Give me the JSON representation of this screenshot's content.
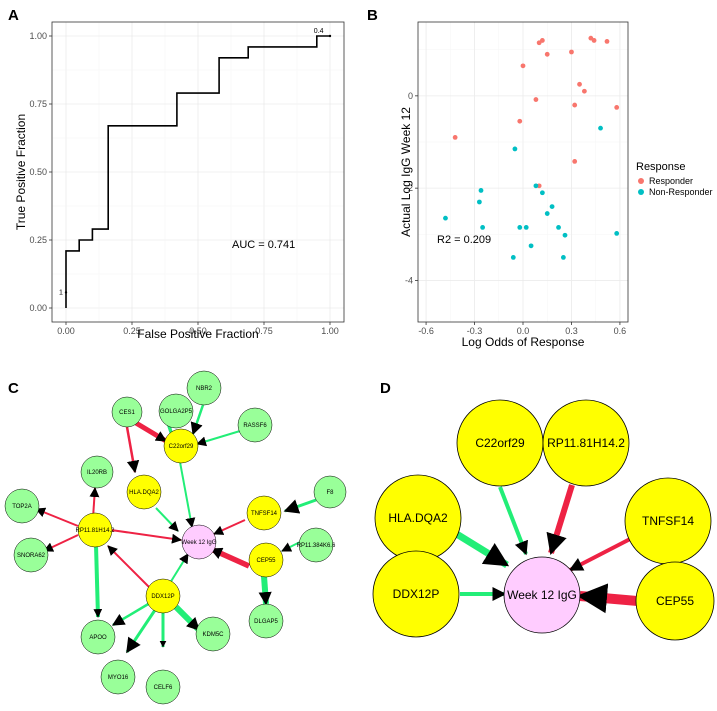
{
  "panel_labels": {
    "a": "A",
    "b": "B",
    "c": "C",
    "d": "D"
  },
  "colors": {
    "responder": "#f8766d",
    "non_responder": "#00bfc4",
    "pos_edge": "#22ee77",
    "neg_edge": "#ee2244",
    "hub_node": "#ffff00",
    "leaf_node": "#99ff99",
    "center_node": "#ffccff"
  },
  "chart_data": [
    {
      "id": "A",
      "type": "line",
      "title": "",
      "xlabel": "False Positive Fraction",
      "ylabel": "True Positive Fraction",
      "xlim": [
        0,
        1
      ],
      "ylim": [
        0,
        1
      ],
      "xticks": [
        "0.00",
        "0.25",
        "0.50",
        "0.75",
        "1.00"
      ],
      "yticks": [
        "0.00",
        "0.25",
        "0.50",
        "0.75",
        "1.00"
      ],
      "series": [
        {
          "name": "ROC",
          "x": [
            0,
            0,
            0.05,
            0.05,
            0.1,
            0.1,
            0.16,
            0.16,
            0.42,
            0.42,
            0.58,
            0.58,
            0.69,
            0.69,
            0.95,
            0.95,
            1.0
          ],
          "y": [
            0,
            0.21,
            0.21,
            0.25,
            0.25,
            0.29,
            0.29,
            0.67,
            0.67,
            0.79,
            0.79,
            0.92,
            0.92,
            0.96,
            0.96,
            1.0,
            1.0
          ]
        }
      ],
      "annotations": {
        "auc_text": "AUC = 0.741",
        "start_label": "1",
        "end_label": "0.4"
      }
    },
    {
      "id": "B",
      "type": "scatter",
      "title": "",
      "xlabel": "Log Odds of Response",
      "ylabel": "Actual Log IgG Week 12",
      "xlim": [
        -0.65,
        0.65
      ],
      "ylim": [
        -4.9,
        1.6
      ],
      "xticks": [
        -0.6,
        -0.3,
        0.0,
        0.3,
        0.6
      ],
      "yticks": [
        -4,
        -2,
        0
      ],
      "xtick_labels": [
        "-0.6",
        "-0.3",
        "0.0",
        "0.3",
        "0.6"
      ],
      "ytick_labels": [
        "-4",
        "-2",
        "0"
      ],
      "series": [
        {
          "name": "Responder",
          "points": [
            [
              0.1,
              1.15
            ],
            [
              0.12,
              1.2
            ],
            [
              0.42,
              1.25
            ],
            [
              0.44,
              1.2
            ],
            [
              0.52,
              1.18
            ],
            [
              0.3,
              0.95
            ],
            [
              0.15,
              0.9
            ],
            [
              0.0,
              0.65
            ],
            [
              0.35,
              0.25
            ],
            [
              0.38,
              0.1
            ],
            [
              0.32,
              -0.2
            ],
            [
              0.58,
              -0.25
            ],
            [
              0.08,
              -0.08
            ],
            [
              -0.02,
              -0.55
            ],
            [
              -0.42,
              -0.9
            ],
            [
              0.1,
              -1.95
            ],
            [
              0.32,
              -1.42
            ]
          ]
        },
        {
          "name": "Non-Responder",
          "points": [
            [
              0.48,
              -0.7
            ],
            [
              -0.05,
              -1.15
            ],
            [
              0.08,
              -1.95
            ],
            [
              0.12,
              -2.1
            ],
            [
              0.18,
              -2.4
            ],
            [
              0.15,
              -2.55
            ],
            [
              -0.26,
              -2.05
            ],
            [
              -0.27,
              -2.3
            ],
            [
              -0.48,
              -2.65
            ],
            [
              -0.25,
              -2.85
            ],
            [
              -0.02,
              -2.85
            ],
            [
              0.02,
              -2.85
            ],
            [
              0.22,
              -2.85
            ],
            [
              0.05,
              -3.25
            ],
            [
              0.26,
              -3.02
            ],
            [
              -0.06,
              -3.5
            ],
            [
              0.25,
              -3.5
            ],
            [
              0.58,
              -2.98
            ]
          ]
        }
      ],
      "annotations": {
        "r2_text": "R2 = 0.209"
      },
      "legend": {
        "title": "Response",
        "items": [
          "Responder",
          "Non-Responder"
        ]
      }
    }
  ],
  "network_c": {
    "center": "Week 12 IgG",
    "nodes": {
      "week12": "Week 12 IgG",
      "golga2p5": "GOLGA2P5",
      "nbr2": "NBR2",
      "ces1": "CES1",
      "c22orf29": "C22orf29",
      "rassf6": "RASSF6",
      "il20rb": "IL20RB",
      "hladqa2": "HLA.DQA2",
      "tnfsf14": "TNFSF14",
      "f8": "F8",
      "top2a": "TOP2A",
      "rp11_81h14": "RP11.81H14.2",
      "rp11_384k6": "RP11.384K6.6",
      "snora62": "SNORA62",
      "cep55": "CEP55",
      "ddx12p": "DDX12P",
      "apoo": "APOO",
      "kdm5c": "KDM5C",
      "dlgap5": "DLGAP5",
      "myo16": "MYO16",
      "celf6": "CELF6"
    }
  },
  "network_d": {
    "center": "Week 12 IgG",
    "nodes": {
      "c22orf29": "C22orf29",
      "rp11_81h14": "RP11.81H14.2",
      "hladqa2": "HLA.DQA2",
      "tnfsf14": "TNFSF14",
      "ddx12p": "DDX12P",
      "cep55": "CEP55",
      "week12": "Week 12 IgG"
    }
  }
}
